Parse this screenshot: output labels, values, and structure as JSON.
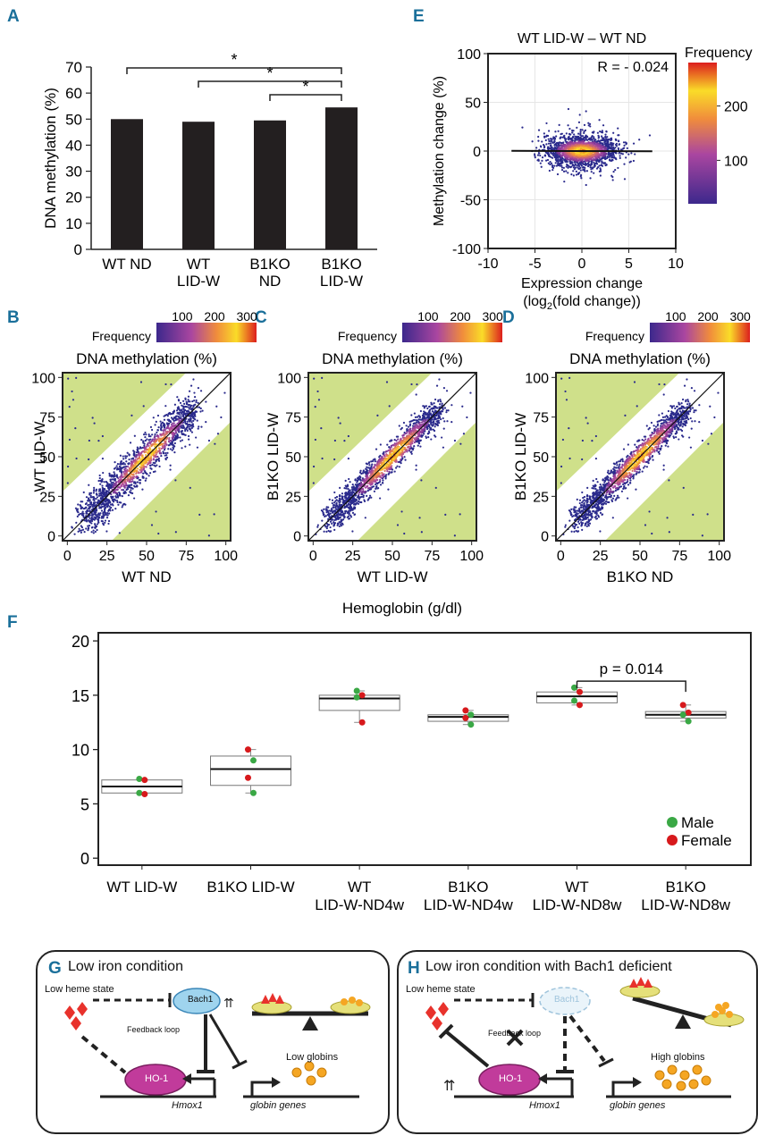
{
  "panels": {
    "A": "A",
    "B": "B",
    "C": "C",
    "D": "D",
    "E": "E",
    "F": "F",
    "G": "G",
    "H": "H"
  },
  "colors": {
    "panel_letter": "#1a6f9a",
    "bar": "#231f20",
    "shade": "#cfe08a",
    "point_low": "#2a2a8c",
    "male": "#3aa845",
    "female": "#d7191c"
  },
  "panel_a": {
    "chart_data": {
      "type": "bar",
      "ylabel": "DNA methylation (%)",
      "ylim": [
        0,
        70
      ],
      "yticks": [
        "0",
        "10",
        "20",
        "30",
        "40",
        "50",
        "60",
        "70"
      ],
      "categories": [
        [
          "WT ND"
        ],
        [
          "WT",
          "LID-W"
        ],
        [
          "B1KO",
          "ND"
        ],
        [
          "B1KO",
          "LID-W"
        ]
      ],
      "values": [
        50,
        49,
        49.5,
        54.5
      ],
      "significance": [
        {
          "from": 0,
          "to": 3,
          "label": "*"
        },
        {
          "from": 1,
          "to": 3,
          "label": "*"
        },
        {
          "from": 2,
          "to": 3,
          "label": "*"
        }
      ]
    }
  },
  "panel_e": {
    "chart_data": {
      "type": "scatter",
      "title": "WT LID-W – WT ND",
      "annotation": "R = - 0.024",
      "xlabel": "Expression change",
      "xlabel2": "(log",
      "xlabel2_sub": "2",
      "xlabel2_tail": "(fold change))",
      "ylabel": "Methylation change (%)",
      "xlim": [
        -10,
        10
      ],
      "ylim": [
        -100,
        100
      ],
      "xticks": [
        "-10",
        "-5",
        "0",
        "5",
        "10"
      ],
      "yticks": [
        "100",
        "50",
        "0",
        "-50",
        "-100"
      ],
      "colorbar_label": "Frequency",
      "colorbar_ticks": [
        "200",
        "100"
      ],
      "regression": {
        "slope": -0.03,
        "intercept": 0
      }
    }
  },
  "scatter_panels": [
    {
      "chart_data": {
        "type": "scatter",
        "title": "DNA methylation (%)",
        "xlabel": "WT ND",
        "ylabel": "WT LID-W",
        "xlim": [
          0,
          100
        ],
        "ylim": [
          0,
          100
        ],
        "ticks": [
          "0",
          "25",
          "50",
          "75",
          "100"
        ],
        "colorbar_label": "Frequency",
        "colorbar_ticks": [
          "100",
          "200",
          "300"
        ]
      }
    },
    {
      "chart_data": {
        "type": "scatter",
        "title": "DNA methylation (%)",
        "xlabel": "WT LID-W",
        "ylabel": "B1KO LID-W",
        "xlim": [
          0,
          100
        ],
        "ylim": [
          0,
          100
        ],
        "ticks": [
          "0",
          "25",
          "50",
          "75",
          "100"
        ],
        "colorbar_label": "Frequency",
        "colorbar_ticks": [
          "100",
          "200",
          "300"
        ]
      }
    },
    {
      "chart_data": {
        "type": "scatter",
        "title": "DNA methylation (%)",
        "xlabel": "B1KO ND",
        "ylabel": "B1KO LID-W",
        "xlim": [
          0,
          100
        ],
        "ylim": [
          0,
          100
        ],
        "ticks": [
          "0",
          "25",
          "50",
          "75",
          "100"
        ],
        "colorbar_label": "Frequency",
        "colorbar_ticks": [
          "100",
          "200",
          "300"
        ]
      }
    }
  ],
  "panel_f": {
    "chart_data": {
      "type": "box",
      "ylabel": "Hemoglobin (g/dl)",
      "ylim": [
        0,
        20
      ],
      "yticks": [
        "0",
        "5",
        "10",
        "15",
        "20"
      ],
      "categories": [
        [
          "WT LID-W"
        ],
        [
          "B1KO LID-W"
        ],
        [
          "WT",
          "LID-W-ND4w"
        ],
        [
          "B1KO",
          "LID-W-ND4w"
        ],
        [
          "WT",
          "LID-W-ND8w"
        ],
        [
          "B1KO",
          "LID-W-ND8w"
        ]
      ],
      "boxes": [
        {
          "min": 5.9,
          "q1": 6.0,
          "median": 6.6,
          "q3": 7.2,
          "max": 7.3
        },
        {
          "min": 6.0,
          "q1": 6.7,
          "median": 8.2,
          "q3": 9.4,
          "max": 10.0
        },
        {
          "min": 12.5,
          "q1": 13.6,
          "median": 14.7,
          "q3": 15.0,
          "max": 15.4
        },
        {
          "min": 12.3,
          "q1": 12.6,
          "median": 13.0,
          "q3": 13.2,
          "max": 13.6
        },
        {
          "min": 14.1,
          "q1": 14.3,
          "median": 14.9,
          "q3": 15.3,
          "max": 15.7
        },
        {
          "min": 12.6,
          "q1": 12.9,
          "median": 13.2,
          "q3": 13.5,
          "max": 14.1
        }
      ],
      "points": [
        [
          {
            "y": 7.3,
            "sex": "male"
          },
          {
            "y": 7.2,
            "sex": "female"
          },
          {
            "y": 6.0,
            "sex": "male"
          },
          {
            "y": 5.9,
            "sex": "female"
          }
        ],
        [
          {
            "y": 10.0,
            "sex": "female"
          },
          {
            "y": 9.0,
            "sex": "male"
          },
          {
            "y": 7.4,
            "sex": "female"
          },
          {
            "y": 6.0,
            "sex": "male"
          }
        ],
        [
          {
            "y": 15.4,
            "sex": "male"
          },
          {
            "y": 15.0,
            "sex": "female"
          },
          {
            "y": 14.8,
            "sex": "male"
          },
          {
            "y": 12.5,
            "sex": "female"
          }
        ],
        [
          {
            "y": 13.6,
            "sex": "female"
          },
          {
            "y": 13.2,
            "sex": "male"
          },
          {
            "y": 12.9,
            "sex": "female"
          },
          {
            "y": 12.3,
            "sex": "male"
          }
        ],
        [
          {
            "y": 15.7,
            "sex": "male"
          },
          {
            "y": 15.3,
            "sex": "female"
          },
          {
            "y": 14.5,
            "sex": "male"
          },
          {
            "y": 14.1,
            "sex": "female"
          }
        ],
        [
          {
            "y": 14.1,
            "sex": "female"
          },
          {
            "y": 13.4,
            "sex": "female"
          },
          {
            "y": 13.2,
            "sex": "male"
          },
          {
            "y": 12.6,
            "sex": "male"
          }
        ]
      ],
      "pvalue": {
        "from": 4,
        "to": 5,
        "label": "p = 0.014"
      },
      "legend": [
        {
          "label": "Male",
          "sex": "male"
        },
        {
          "label": "Female",
          "sex": "female"
        }
      ]
    }
  },
  "panel_g": {
    "title": "Low iron condition",
    "low_heme": "Low heme state",
    "bach1": "Bach1",
    "feedback": "Feedback loop",
    "ho1": "HO-1",
    "gene1": "Hmox1",
    "low_globins": "Low globins",
    "gene2": "globin genes"
  },
  "panel_h": {
    "title": "Low iron condition with Bach1 deficient",
    "low_heme": "Low heme state",
    "bach1": "Bach1",
    "feedback": "Feedback loop",
    "ho1": "HO-1",
    "gene1": "Hmox1",
    "high_globins": "High globins",
    "gene2": "globin genes"
  }
}
